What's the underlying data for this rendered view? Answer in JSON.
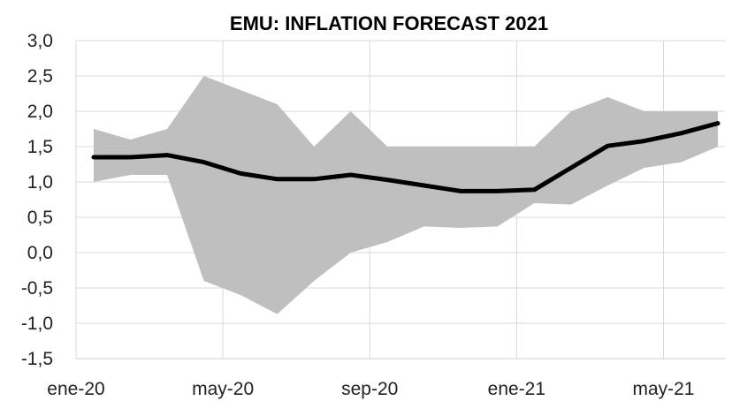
{
  "chart_data": {
    "type": "area",
    "title": "EMU: INFLATION FORECAST 2021",
    "xlabel": "",
    "ylabel": "",
    "ylim": [
      -1.5,
      3.0
    ],
    "y_ticks": [
      "3,0",
      "2,5",
      "2,0",
      "1,5",
      "1,0",
      "0,5",
      "0,0",
      "-0,5",
      "-1,0",
      "-1,5"
    ],
    "y_tick_values": [
      3.0,
      2.5,
      2.0,
      1.5,
      1.0,
      0.5,
      0.0,
      -0.5,
      -1.0,
      -1.5
    ],
    "x_tick_labels": [
      "ene-20",
      "may-20",
      "sep-20",
      "ene-21",
      "may-21"
    ],
    "x_tick_index": [
      0,
      4,
      8,
      12,
      16
    ],
    "x": [
      "ene-20",
      "feb-20",
      "mar-20",
      "abr-20",
      "may-20",
      "jun-20",
      "jul-20",
      "ago-20",
      "sep-20",
      "oct-20",
      "nov-20",
      "dic-20",
      "ene-21",
      "feb-21",
      "mar-21",
      "abr-21",
      "may-21",
      "jun-21"
    ],
    "grid": true,
    "legend": "none",
    "series": [
      {
        "type": "band",
        "color": "#bfbfbf",
        "upper": [
          1.75,
          1.6,
          1.75,
          2.5,
          2.3,
          2.1,
          1.5,
          2.0,
          1.5,
          1.5,
          1.5,
          1.5,
          1.5,
          2.0,
          2.2,
          2.0,
          2.0,
          2.0
        ],
        "lower": [
          1.0,
          1.1,
          1.1,
          -0.4,
          -0.6,
          -0.87,
          -0.4,
          0.0,
          0.15,
          0.37,
          0.35,
          0.37,
          0.7,
          0.68,
          0.95,
          1.2,
          1.28,
          1.5
        ]
      },
      {
        "type": "line",
        "color": "#000000",
        "values": [
          1.35,
          1.35,
          1.38,
          1.28,
          1.12,
          1.04,
          1.04,
          1.1,
          1.03,
          0.95,
          0.87,
          0.87,
          0.89,
          1.2,
          1.51,
          1.58,
          1.69,
          1.83
        ]
      }
    ]
  }
}
